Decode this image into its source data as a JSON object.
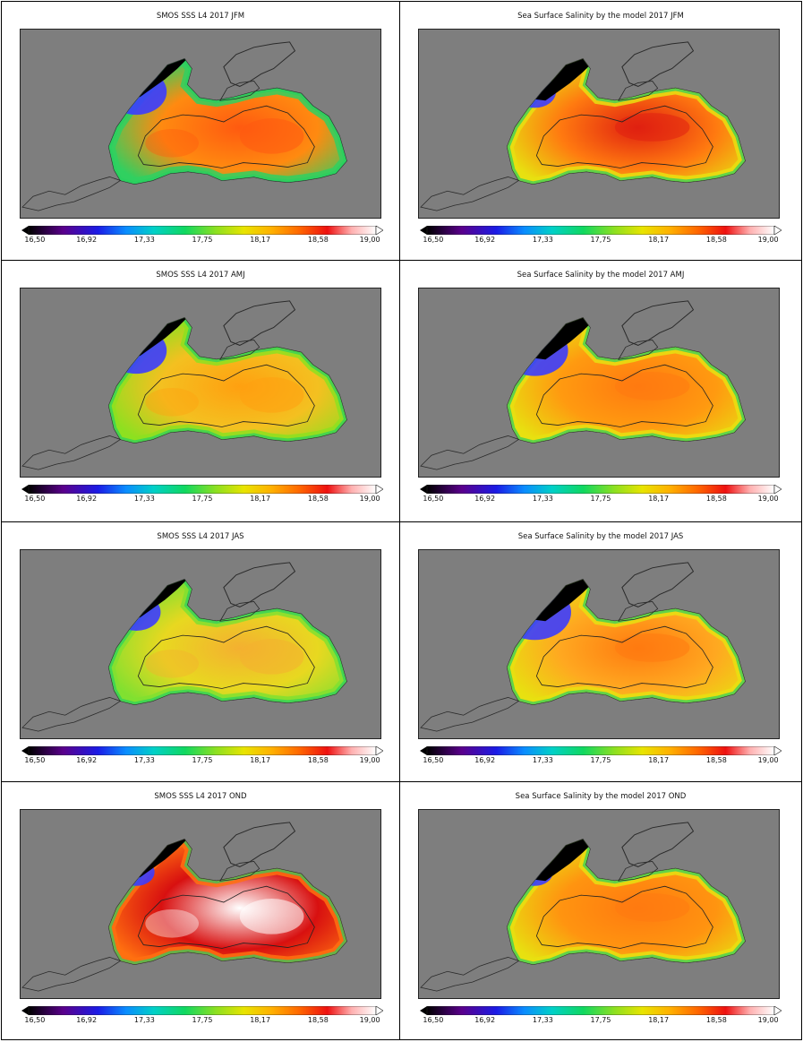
{
  "colorbar": {
    "ticks": [
      "16,50",
      "16,92",
      "17,33",
      "17,75",
      "18,17",
      "18,58",
      "19,00"
    ],
    "range": [
      16.5,
      19.0
    ],
    "stops": [
      {
        "v": 0.0,
        "c": "#000000"
      },
      {
        "v": 0.1,
        "c": "#5a008c"
      },
      {
        "v": 0.2,
        "c": "#1b1be6"
      },
      {
        "v": 0.28,
        "c": "#0a8cff"
      },
      {
        "v": 0.36,
        "c": "#00d0c8"
      },
      {
        "v": 0.45,
        "c": "#10d860"
      },
      {
        "v": 0.54,
        "c": "#8de020"
      },
      {
        "v": 0.62,
        "c": "#e8e400"
      },
      {
        "v": 0.7,
        "c": "#ffb000"
      },
      {
        "v": 0.78,
        "c": "#ff6600"
      },
      {
        "v": 0.86,
        "c": "#ee1010"
      },
      {
        "v": 0.93,
        "c": "#ffb0b0"
      },
      {
        "v": 1.0,
        "c": "#ffffff"
      }
    ]
  },
  "colors": {
    "land": "#7e7e7e",
    "coast": "#2a2a2a",
    "fresh": "#000000",
    "low": "#3c3cff",
    "mid": "#28d060",
    "yellow": "#e8e010",
    "orange": "#ff9a00",
    "orange_red": "#ff6a10",
    "red": "#e02010",
    "white": "#ffffff"
  },
  "panels": [
    {
      "title": "SMOS SSS L4 2017 JFM",
      "type": "smos",
      "fill": "#ff8a10",
      "hot": "#ff5a10",
      "band": "#30d060",
      "fresh": 1.0
    },
    {
      "title": "Sea Surface Salinity by the model 2017 JFM",
      "type": "model",
      "fill": "#ff7a10",
      "hot": "#e02010",
      "band": "#e8e010",
      "fresh": 0.7
    },
    {
      "title": "SMOS SSS L4 2017 AMJ",
      "type": "smos",
      "fill": "#f4c020",
      "hot": "#ffa010",
      "band": "#8de020",
      "fresh": 1.0
    },
    {
      "title": "Sea Surface Salinity by the model 2017 AMJ",
      "type": "model",
      "fill": "#ff9a10",
      "hot": "#ff7a10",
      "band": "#e8e010",
      "fresh": 1.1
    },
    {
      "title": "SMOS SSS L4 2017 JAS",
      "type": "smos",
      "fill": "#e8d820",
      "hot": "#f4b030",
      "band": "#80e030",
      "fresh": 0.8
    },
    {
      "title": "Sea Surface Salinity by the model 2017 JAS",
      "type": "model",
      "fill": "#ffa820",
      "hot": "#ff7a10",
      "band": "#e8e010",
      "fresh": 1.2
    },
    {
      "title": "SMOS SSS L4 2017 OND",
      "type": "smos",
      "fill": "#d81010",
      "hot": "#ffffff",
      "band": "#ff7010",
      "fresh": 0.6
    },
    {
      "title": "Sea Surface Salinity by the model 2017 OND",
      "type": "model",
      "fill": "#ff9410",
      "hot": "#ff7a10",
      "band": "#e8e010",
      "fresh": 0.6
    }
  ]
}
